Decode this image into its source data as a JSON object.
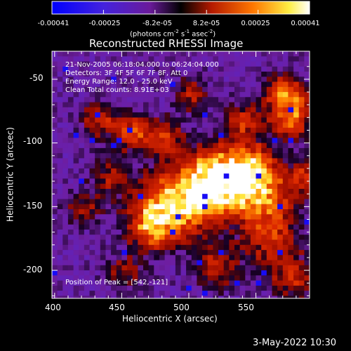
{
  "colorbar": {
    "ticks": [
      "-0.00041",
      "-0.00025",
      "-8.2e-05",
      "8.2e-05",
      "0.00025",
      "0.00041"
    ],
    "unit_main": "(photons cm",
    "unit_exp1": "-2",
    "unit_mid": " s",
    "unit_exp2": "-1",
    "unit_end": " asec",
    "unit_exp3": "-2",
    "unit_close": ")"
  },
  "title": "Reconstructed RHESSI Image",
  "annotations": {
    "line1": "21-Nov-2005 06:18:04.000 to 06:24:04.000",
    "line2": "Detectors: 3F 4F 5F 6F 7F 8F, Att 0",
    "line3": "Energy Range: 12.0 - 25.0 keV",
    "line4": "Clean     Total counts: 8.91E+03",
    "peak": "Position of Peak = [542,-121]"
  },
  "footer": "3-May-2022 10:30",
  "colors": {
    "background": "#000000",
    "text": "#ffffff"
  },
  "chart_data": {
    "type": "heatmap",
    "title": "Reconstructed RHESSI Image",
    "xlabel": "Heliocentric X (arcsec)",
    "ylabel": "Heliocentric Y (arcsec)",
    "xlim": [
      398,
      590
    ],
    "ylim": [
      -222,
      -28
    ],
    "xticks": [
      400,
      450,
      500,
      550
    ],
    "yticks": [
      -50,
      -100,
      -150,
      -200
    ],
    "xtick_labels": [
      "400",
      "450",
      "500",
      "550"
    ],
    "ytick_labels": [
      "-50",
      "-100",
      "-150",
      "-200"
    ],
    "color_range": [
      -0.00041,
      0.00041
    ],
    "peak": [
      542,
      -121
    ],
    "colormap": [
      "#0000ff",
      "#6633cc",
      "#7700aa",
      "#000000",
      "#cc2200",
      "#ff8800",
      "#ffee33",
      "#ffffff"
    ]
  }
}
